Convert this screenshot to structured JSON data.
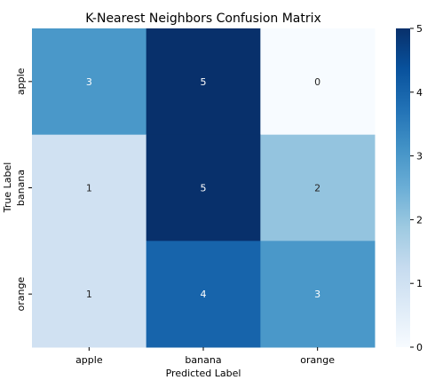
{
  "chart_data": {
    "type": "heatmap",
    "title": "K-Nearest Neighbors Confusion Matrix",
    "xlabel": "Predicted Label",
    "ylabel": "True Label",
    "x_categories": [
      "apple",
      "banana",
      "orange"
    ],
    "y_categories": [
      "apple",
      "banana",
      "orange"
    ],
    "values": [
      [
        3,
        5,
        0
      ],
      [
        1,
        5,
        2
      ],
      [
        1,
        4,
        3
      ]
    ],
    "colorbar": {
      "min": 0,
      "max": 5,
      "ticks": [
        0,
        1,
        2,
        3,
        4,
        5
      ]
    },
    "colormap": "Blues",
    "colors": [
      "#f7fbff",
      "#deebf7",
      "#c6dbef",
      "#9ecae1",
      "#6baed6",
      "#4292c6",
      "#2171b5",
      "#08519c",
      "#08306b"
    ]
  }
}
